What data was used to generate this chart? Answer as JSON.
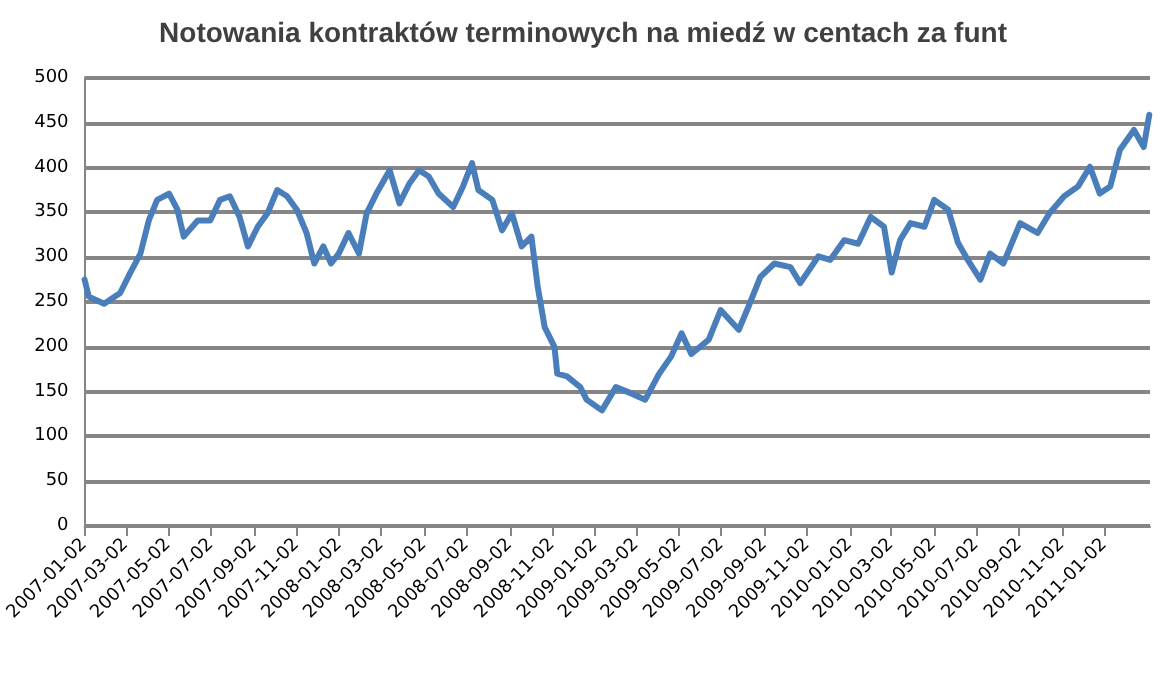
{
  "chart_data": {
    "type": "line",
    "title": "Notowania kontraktów terminowych na miedź w centach za funt",
    "x": [
      "2007-01-02",
      "2007-01-08",
      "2007-01-30",
      "2007-02-22",
      "2007-03-08",
      "2007-03-23",
      "2007-04-04",
      "2007-04-16",
      "2007-05-03",
      "2007-05-15",
      "2007-05-24",
      "2007-06-13",
      "2007-07-01",
      "2007-07-15",
      "2007-07-29",
      "2007-08-12",
      "2007-08-24",
      "2007-09-07",
      "2007-09-21",
      "2007-10-05",
      "2007-10-19",
      "2007-11-02",
      "2007-11-16",
      "2007-11-27",
      "2007-12-10",
      "2007-12-21",
      "2008-01-01",
      "2008-01-15",
      "2008-01-30",
      "2008-02-10",
      "2008-02-24",
      "2008-03-14",
      "2008-03-28",
      "2008-04-11",
      "2008-04-25",
      "2008-05-09",
      "2008-05-23",
      "2008-06-13",
      "2008-06-27",
      "2008-07-10",
      "2008-07-19",
      "2008-08-08",
      "2008-08-22",
      "2008-09-05",
      "2008-09-19",
      "2008-10-03",
      "2008-10-12",
      "2008-10-22",
      "2008-11-05",
      "2008-11-09",
      "2008-11-23",
      "2008-12-12",
      "2008-12-21",
      "2009-01-12",
      "2009-02-01",
      "2009-02-23",
      "2009-03-15",
      "2009-04-04",
      "2009-04-21",
      "2009-05-06",
      "2009-05-20",
      "2009-06-14",
      "2009-07-01",
      "2009-07-27",
      "2009-08-10",
      "2009-08-27",
      "2009-09-16",
      "2009-10-09",
      "2009-10-23",
      "2009-11-18",
      "2009-12-05",
      "2009-12-25",
      "2010-01-14",
      "2010-02-01",
      "2010-02-20",
      "2010-03-03",
      "2010-03-15",
      "2010-03-30",
      "2010-04-19",
      "2010-05-03",
      "2010-05-23",
      "2010-06-06",
      "2010-06-20",
      "2010-07-08",
      "2010-07-22",
      "2010-08-10",
      "2010-09-03",
      "2010-09-28",
      "2010-10-15",
      "2010-11-05",
      "2010-11-25",
      "2010-12-12",
      "2010-12-26",
      "2011-01-10",
      "2011-01-24",
      "2011-02-13",
      "2011-02-27",
      "2011-03-07"
    ],
    "series": [
      {
        "color": "#4a7ebb",
        "values": [
          275,
          256,
          248,
          260,
          282,
          304,
          341,
          364,
          371,
          353,
          323,
          341,
          341,
          364,
          368,
          345,
          312,
          334,
          349,
          375,
          368,
          353,
          327,
          293,
          312,
          293,
          304,
          327,
          304,
          349,
          371,
          397,
          360,
          382,
          397,
          390,
          371,
          356,
          379,
          405,
          375,
          364,
          330,
          349,
          312,
          323,
          267,
          222,
          200,
          170,
          167,
          155,
          141,
          129,
          155,
          148,
          141,
          170,
          189,
          215,
          192,
          208,
          241,
          219,
          245,
          278,
          293,
          289,
          271,
          301,
          297,
          319,
          315,
          345,
          334,
          283,
          319,
          338,
          334,
          364,
          353,
          316,
          297,
          275,
          304,
          293,
          338,
          327,
          349,
          368,
          379,
          401,
          371,
          379,
          420,
          442,
          423,
          459
        ]
      }
    ],
    "xlim": [
      "2007-01-02",
      "2011-03-08"
    ],
    "xticks": [
      "2007-01-02",
      "2007-03-02",
      "2007-05-02",
      "2007-07-02",
      "2007-09-02",
      "2007-11-02",
      "2008-01-02",
      "2008-03-02",
      "2008-05-02",
      "2008-07-02",
      "2008-09-02",
      "2008-11-02",
      "2009-01-02",
      "2009-03-02",
      "2009-05-02",
      "2009-07-02",
      "2009-09-02",
      "2009-11-02",
      "2010-01-02",
      "2010-03-02",
      "2010-05-02",
      "2010-07-02",
      "2010-09-02",
      "2010-11-02",
      "2011-01-02"
    ],
    "ylim": [
      0,
      500
    ],
    "yticks": [
      0,
      50,
      100,
      150,
      200,
      250,
      300,
      350,
      400,
      450,
      500
    ],
    "grid": "y",
    "marker": "none",
    "line_style": "solid"
  }
}
